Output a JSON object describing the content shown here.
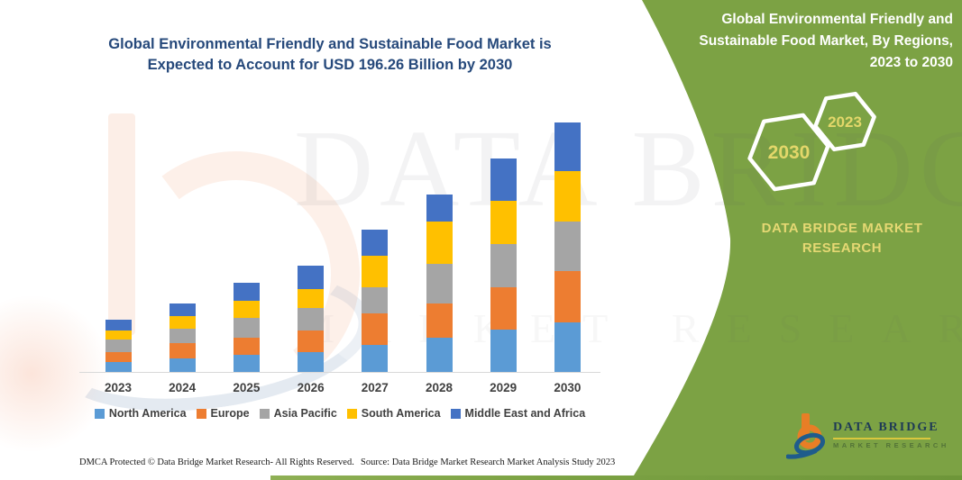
{
  "header": {
    "title_lines": [
      "Global Environmental Friendly and Sustainable Food Market is",
      "Expected to Account for USD 196.26 Billion by 2030"
    ]
  },
  "side_panel": {
    "heading_lines": [
      "Global Environmental Friendly and",
      "Sustainable Food Market, By Regions,",
      "2023 to 2030"
    ],
    "badge_large": "2030",
    "badge_small": "2023",
    "brand_lines": [
      "DATA BRIDGE MARKET",
      "RESEARCH"
    ],
    "bg_color": "#7CA244",
    "badge_text_color": "#E3D76A"
  },
  "watermark": {
    "line1": "DATA BRIDGE",
    "line2": "MARKET RESEARCH"
  },
  "chart_data": {
    "type": "bar",
    "stacked": true,
    "title": "Global Environmental Friendly and Sustainable Food Market is Expected to Account for USD 196.26 Billion by 2030",
    "unit": "USD Billion",
    "categories": [
      "2023",
      "2024",
      "2025",
      "2026",
      "2027",
      "2028",
      "2029",
      "2030"
    ],
    "series": [
      {
        "name": "North America",
        "color": "#5B9BD5",
        "values": [
          7.6,
          10.6,
          13.5,
          15.8,
          21.3,
          27.1,
          33.1,
          39.0
        ]
      },
      {
        "name": "Europe",
        "color": "#ED7D31",
        "values": [
          8.3,
          12.3,
          13.7,
          17.0,
          24.8,
          27.1,
          33.5,
          40.2
        ]
      },
      {
        "name": "Asia Pacific",
        "color": "#A5A5A5",
        "values": [
          9.9,
          11.3,
          15.1,
          17.2,
          20.8,
          31.2,
          33.8,
          39.5
        ]
      },
      {
        "name": "South America",
        "color": "#FFC000",
        "values": [
          7.1,
          10.1,
          13.7,
          15.4,
          24.8,
          33.1,
          34.2,
          39.0
        ]
      },
      {
        "name": "Middle East and Africa",
        "color": "#4472C4",
        "values": [
          8.5,
          9.9,
          14.2,
          18.2,
          20.5,
          21.3,
          33.1,
          38.6
        ]
      }
    ],
    "totals": [
      41.4,
      54.2,
      70.2,
      83.6,
      112.2,
      139.8,
      167.7,
      196.26
    ],
    "ylim": [
      0,
      200
    ],
    "grid": false,
    "y_axis_visible": false,
    "legend_position": "bottom"
  },
  "footer": {
    "dmca": "DMCA Protected © Data Bridge Market Research-  All Rights Reserved.",
    "source": "Source: Data Bridge Market Research  Market Analysis Study 2023"
  },
  "logo": {
    "name": "DATA BRIDGE",
    "sub": "MARKET RESEARCH"
  }
}
